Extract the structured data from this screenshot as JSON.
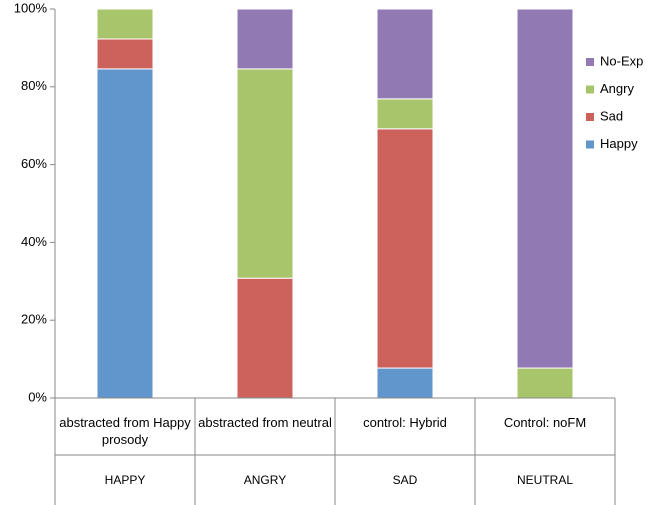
{
  "chart_data": {
    "type": "stacked_bar",
    "categories": [
      "abstracted from Happy prosody",
      "abstracted from neutral",
      "control: Hybrid",
      "Control: noFM"
    ],
    "groups": [
      "HAPPY",
      "ANGRY",
      "SAD",
      "NEUTRAL"
    ],
    "series": [
      {
        "name": "Happy",
        "color": "#6096cc",
        "values": [
          84.6,
          0,
          7.7,
          0
        ]
      },
      {
        "name": "Sad",
        "color": "#cd615c",
        "values": [
          7.7,
          30.8,
          61.5,
          0
        ]
      },
      {
        "name": "Angry",
        "color": "#a8c56c",
        "values": [
          7.7,
          53.8,
          7.7,
          7.7
        ]
      },
      {
        "name": "No-Exp",
        "color": "#9179b4",
        "values": [
          0,
          15.4,
          23.1,
          92.3
        ]
      }
    ],
    "ylim": [
      0,
      100
    ],
    "yticks": [
      {
        "value": 0,
        "label": "0%"
      },
      {
        "value": 20,
        "label": "20%"
      },
      {
        "value": 40,
        "label": "40%"
      },
      {
        "value": 60,
        "label": "60%"
      },
      {
        "value": 80,
        "label": "80%"
      },
      {
        "value": 100,
        "label": "100%"
      }
    ],
    "legend": "right"
  }
}
